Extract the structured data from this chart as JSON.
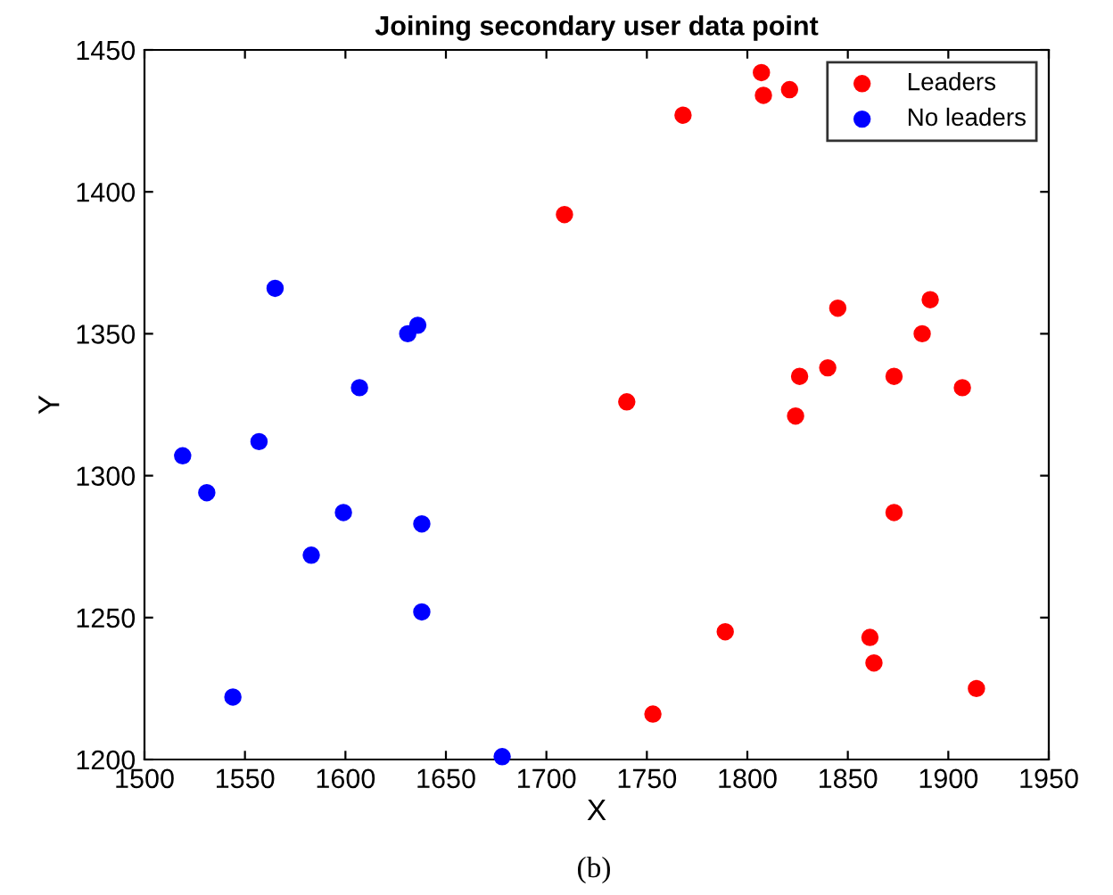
{
  "chart_data": {
    "type": "scatter",
    "title": "Joining secondary user data point",
    "xlabel": "X",
    "ylabel": "Y",
    "xlim": [
      1500,
      1950
    ],
    "ylim": [
      1200,
      1450
    ],
    "xticks": [
      1500,
      1550,
      1600,
      1650,
      1700,
      1750,
      1800,
      1850,
      1900,
      1950
    ],
    "yticks": [
      1200,
      1250,
      1300,
      1350,
      1400,
      1450
    ],
    "grid": false,
    "legend": "top right",
    "marker": "circle",
    "annotations": [
      "(b)"
    ],
    "series": [
      {
        "name": "Leaders",
        "color": "#ff0000",
        "x": [
          1807,
          1808,
          1821,
          1768,
          1709,
          1740,
          1845,
          1891,
          1887,
          1840,
          1826,
          1873,
          1907,
          1824,
          1873,
          1789,
          1861,
          1863,
          1914,
          1753
        ],
        "values": [
          1442,
          1434,
          1436,
          1427,
          1392,
          1326,
          1359,
          1362,
          1350,
          1338,
          1335,
          1335,
          1331,
          1321,
          1287,
          1245,
          1243,
          1234,
          1225,
          1216
        ]
      },
      {
        "name": "No leaders",
        "color": "#0000ff",
        "x": [
          1565,
          1636,
          1631,
          1607,
          1557,
          1519,
          1531,
          1599,
          1638,
          1583,
          1638,
          1544,
          1678
        ],
        "values": [
          1366,
          1353,
          1350,
          1331,
          1312,
          1307,
          1294,
          1287,
          1283,
          1272,
          1252,
          1222,
          1201
        ]
      }
    ]
  }
}
